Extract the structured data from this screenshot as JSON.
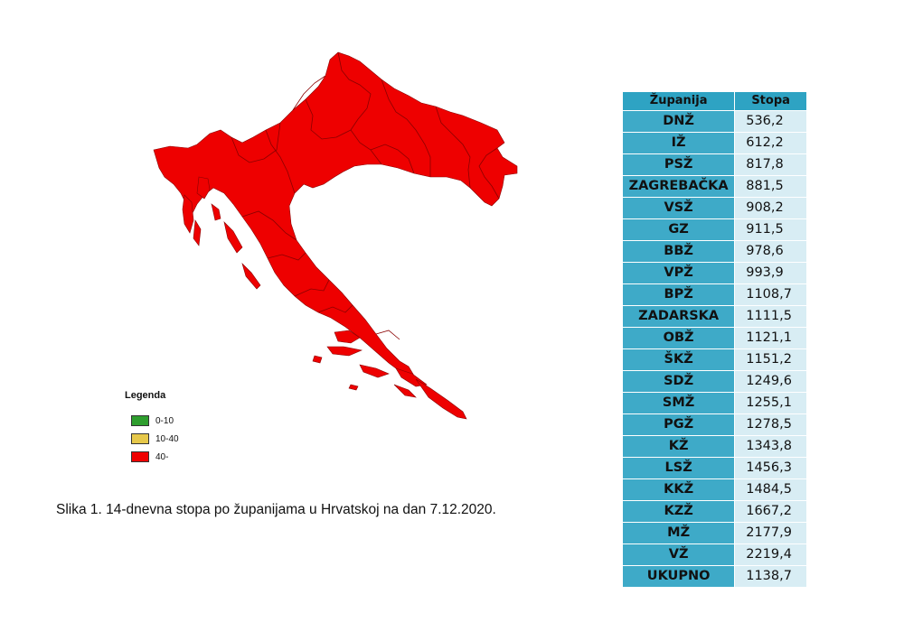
{
  "map": {
    "fill_color": "#ee0000",
    "border_color": "#8a0000"
  },
  "legend": {
    "title": "Legenda",
    "items": [
      {
        "label": "0-10",
        "color": "#2e9e2e"
      },
      {
        "label": "10-40",
        "color": "#e6c84a"
      },
      {
        "label": "40-",
        "color": "#ee0000"
      }
    ]
  },
  "caption": "Slika 1. 14-dnevna stopa po županijama u Hrvatskoj na dan 7.12.2020.",
  "table": {
    "headers": [
      "Županija",
      "Stopa"
    ],
    "rows": [
      {
        "name": "DNŽ",
        "value": "536,2"
      },
      {
        "name": "IŽ",
        "value": "612,2"
      },
      {
        "name": "PSŽ",
        "value": "817,8"
      },
      {
        "name": "ZAGREBAČKA",
        "value": "881,5"
      },
      {
        "name": "VSŽ",
        "value": "908,2"
      },
      {
        "name": "GZ",
        "value": "911,5"
      },
      {
        "name": "BBŽ",
        "value": "978,6"
      },
      {
        "name": "VPŽ",
        "value": "993,9"
      },
      {
        "name": "BPŽ",
        "value": "1108,7"
      },
      {
        "name": "ZADARSKA",
        "value": "1111,5"
      },
      {
        "name": "OBŽ",
        "value": "1121,1"
      },
      {
        "name": "ŠKŽ",
        "value": "1151,2"
      },
      {
        "name": "SDŽ",
        "value": "1249,6"
      },
      {
        "name": "SMŽ",
        "value": "1255,1"
      },
      {
        "name": "PGŽ",
        "value": "1278,5"
      },
      {
        "name": "KŽ",
        "value": "1343,8"
      },
      {
        "name": "LSŽ",
        "value": "1456,3"
      },
      {
        "name": "KKŽ",
        "value": "1484,5"
      },
      {
        "name": "KZŽ",
        "value": "1667,2"
      },
      {
        "name": "MŽ",
        "value": "2177,9"
      },
      {
        "name": "VŽ",
        "value": "2219,4"
      },
      {
        "name": "UKUPNO",
        "value": "1138,7"
      }
    ]
  }
}
